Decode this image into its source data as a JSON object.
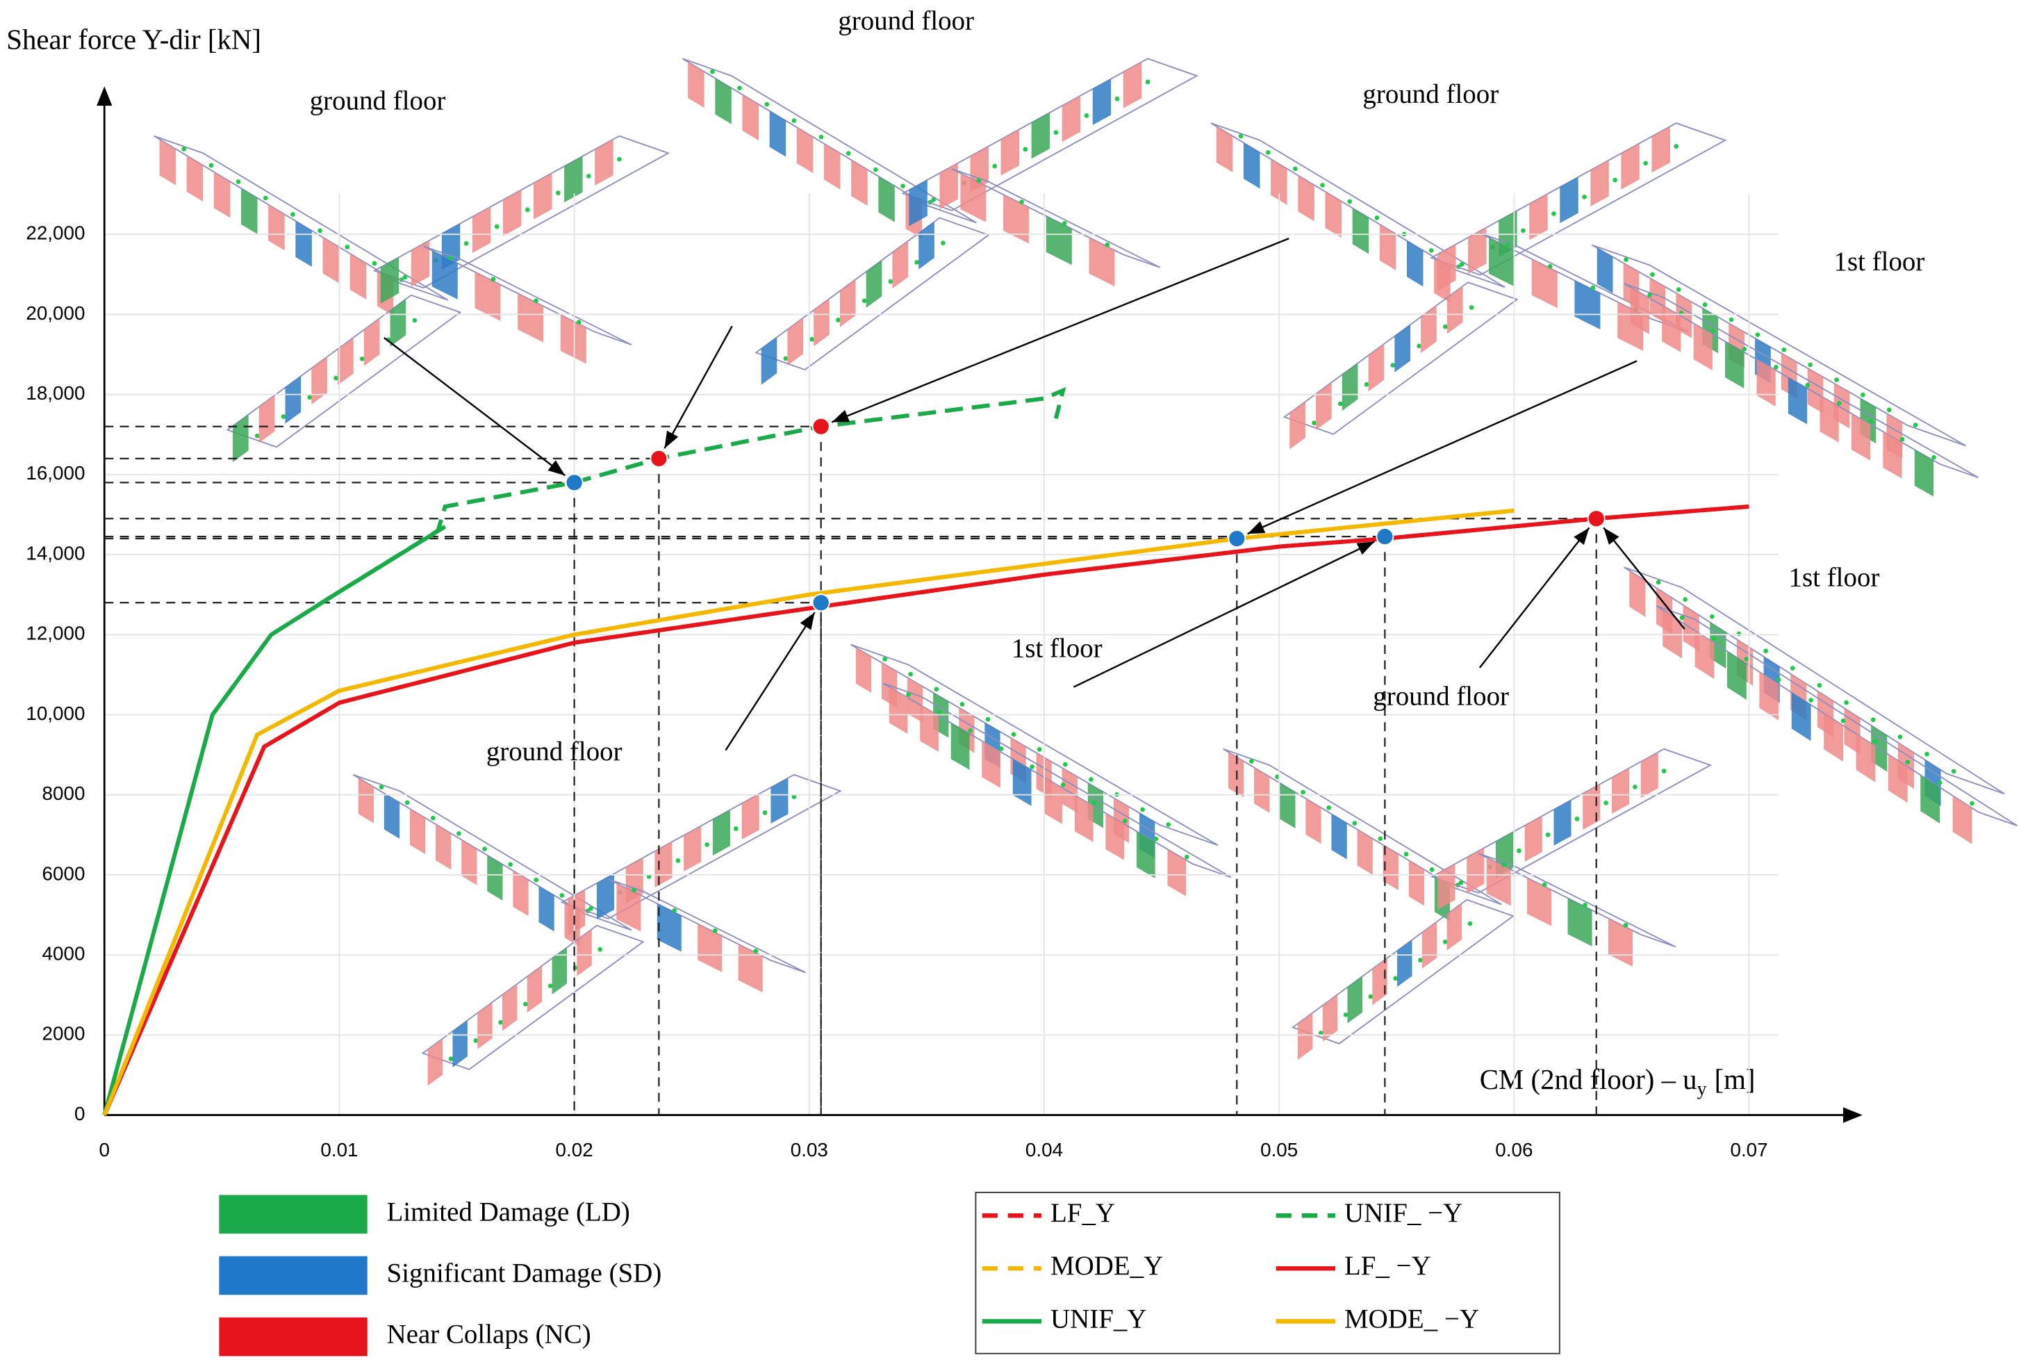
{
  "chart_data": {
    "type": "line",
    "y_label": "Shear force Y-dir [kN]",
    "x_label": {
      "main": "CM (2nd floor) – u",
      "sub": "y",
      "unit": "[m]"
    },
    "xlim": [
      0,
      0.0745
    ],
    "ylim": [
      0,
      25600
    ],
    "xticks": [
      0,
      0.01,
      0.02,
      0.03,
      0.04,
      0.05,
      0.06,
      0.07
    ],
    "yticks": [
      0,
      2000,
      4000,
      6000,
      8000,
      {
        "value": 10000,
        "label": "10,000"
      },
      {
        "value": 12000,
        "label": "12,000"
      },
      {
        "value": 14000,
        "label": "14,000"
      },
      {
        "value": 16000,
        "label": "16,000"
      },
      {
        "value": 18000,
        "label": "18,000"
      },
      {
        "value": 20000,
        "label": "20,000"
      },
      {
        "value": 22000,
        "label": "22,000"
      }
    ],
    "grid": true,
    "series": [
      {
        "name": "LF_Y",
        "color": "#e8141c",
        "dashed": true,
        "x": [
          0,
          0.0068,
          0.01,
          0.02,
          0.0305,
          0.04,
          0.05,
          0.0545,
          0.0635,
          0.07
        ],
        "values": [
          0,
          9200,
          10300,
          11800,
          12700,
          13500,
          14200,
          14400,
          14900,
          15200
        ]
      },
      {
        "name": "UNIF_ −Y",
        "color": "#1aaa4a",
        "dashed": true,
        "x": [
          0,
          0.0046,
          0.0071,
          0.0098,
          0.0142,
          0.0145,
          0.02,
          0.0236,
          0.0305,
          0.04,
          0.0408,
          0.0405
        ],
        "values": [
          0,
          10000,
          12000,
          13000,
          14600,
          15200,
          15800,
          16400,
          17200,
          17900,
          18100,
          17400
        ]
      },
      {
        "name": "MODE_Y",
        "color": "#f5b800",
        "dashed": true,
        "x": [
          0,
          0.0065,
          0.01,
          0.02,
          0.03,
          0.0482,
          0.06
        ],
        "values": [
          0,
          9500,
          10600,
          12000,
          13000,
          14400,
          15100
        ]
      },
      {
        "name": "LF_ −Y",
        "color": "#e8141c",
        "dashed": false,
        "x": [
          0,
          0.0068,
          0.01,
          0.02,
          0.0305,
          0.04,
          0.05,
          0.0545,
          0.0635,
          0.07
        ],
        "values": [
          0,
          9200,
          10300,
          11800,
          12700,
          13500,
          14200,
          14400,
          14900,
          15200
        ]
      },
      {
        "name": "UNIF_Y",
        "color": "#1aaa4a",
        "dashed": false,
        "x": [
          0,
          0.0046,
          0.0071,
          0.0098,
          0.0145
        ],
        "values": [
          0,
          10000,
          12000,
          13000,
          14700
        ]
      },
      {
        "name": "MODE_ −Y",
        "color": "#f5b800",
        "dashed": false,
        "x": [
          0,
          0.0065,
          0.01,
          0.02,
          0.03,
          0.0482,
          0.06
        ],
        "values": [
          0,
          9500,
          10600,
          12000,
          13000,
          14400,
          15100
        ]
      }
    ],
    "points": [
      {
        "x": 0.02,
        "y": 15800,
        "color": "#1f78c8"
      },
      {
        "x": 0.0236,
        "y": 16400,
        "color": "#e8141c"
      },
      {
        "x": 0.0305,
        "y": 17200,
        "color": "#e8141c"
      },
      {
        "x": 0.0305,
        "y": 12800,
        "color": "#1f78c8"
      },
      {
        "x": 0.0482,
        "y": 14400,
        "color": "#1f78c8"
      },
      {
        "x": 0.0545,
        "y": 14450,
        "color": "#1f78c8"
      },
      {
        "x": 0.0635,
        "y": 14900,
        "color": "#e8141c"
      }
    ],
    "floor_labels": [
      "ground floor",
      "ground floor",
      "ground floor",
      "1st floor",
      "ground floor",
      "1st floor",
      "ground floor",
      "1st floor"
    ],
    "damage_legend": [
      {
        "label": "Limited Damage (LD)",
        "color": "#1aaa4a"
      },
      {
        "label": "Significant Damage (SD)",
        "color": "#1f78c8"
      },
      {
        "label": "Near Collaps (NC)",
        "color": "#e8141c"
      }
    ]
  }
}
